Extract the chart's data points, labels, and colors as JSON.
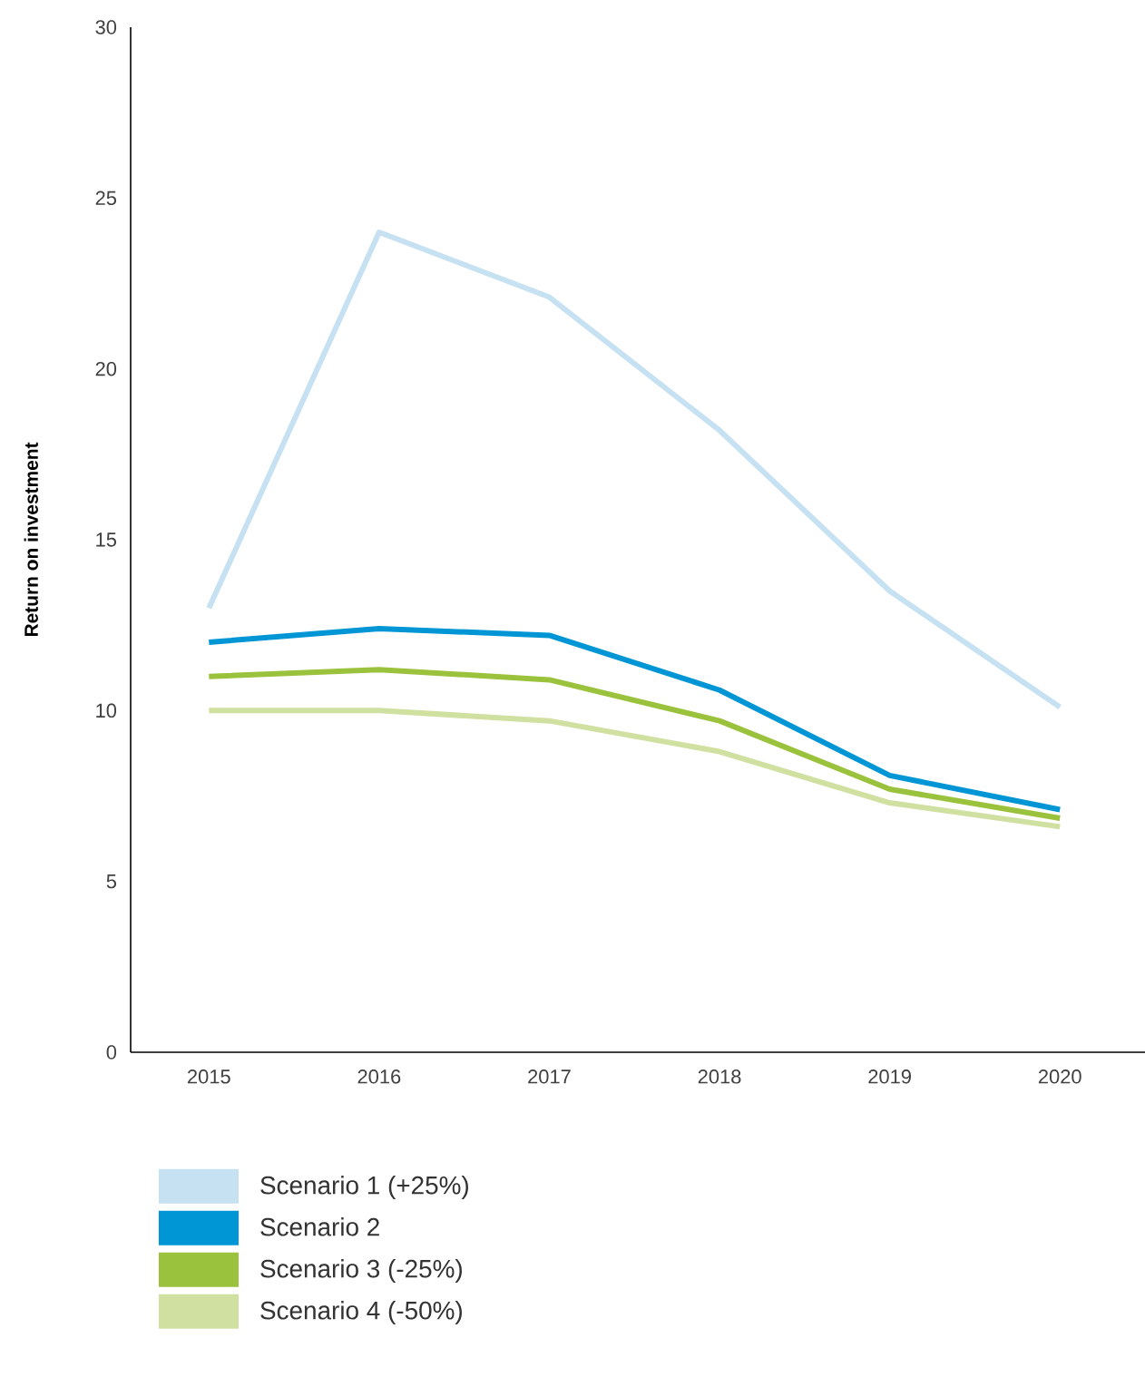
{
  "chart_data": {
    "type": "line",
    "ylabel": "Return on investment",
    "categories": [
      "2015",
      "2016",
      "2017",
      "2018",
      "2019",
      "2020"
    ],
    "series": [
      {
        "name": "Scenario 1 (+25%)",
        "color": "#c6e2f2",
        "values": [
          13.0,
          24.0,
          22.1,
          18.2,
          13.5,
          10.1
        ]
      },
      {
        "name": "Scenario 2",
        "color": "#0096d6",
        "values": [
          12.0,
          12.4,
          12.2,
          10.6,
          8.1,
          7.1
        ]
      },
      {
        "name": "Scenario 3 (-25%)",
        "color": "#9bc23c",
        "values": [
          11.0,
          11.2,
          10.9,
          9.7,
          7.7,
          6.85
        ]
      },
      {
        "name": "Scenario 4 (-50%)",
        "color": "#cfe0a0",
        "values": [
          10.0,
          10.0,
          9.7,
          8.8,
          7.3,
          6.6
        ]
      }
    ],
    "ylim": [
      0,
      30
    ],
    "yticks": [
      0,
      5,
      10,
      15,
      20,
      25,
      30
    ],
    "legend": "bottom",
    "grid": false,
    "marker": "none",
    "line_style": "solid"
  }
}
